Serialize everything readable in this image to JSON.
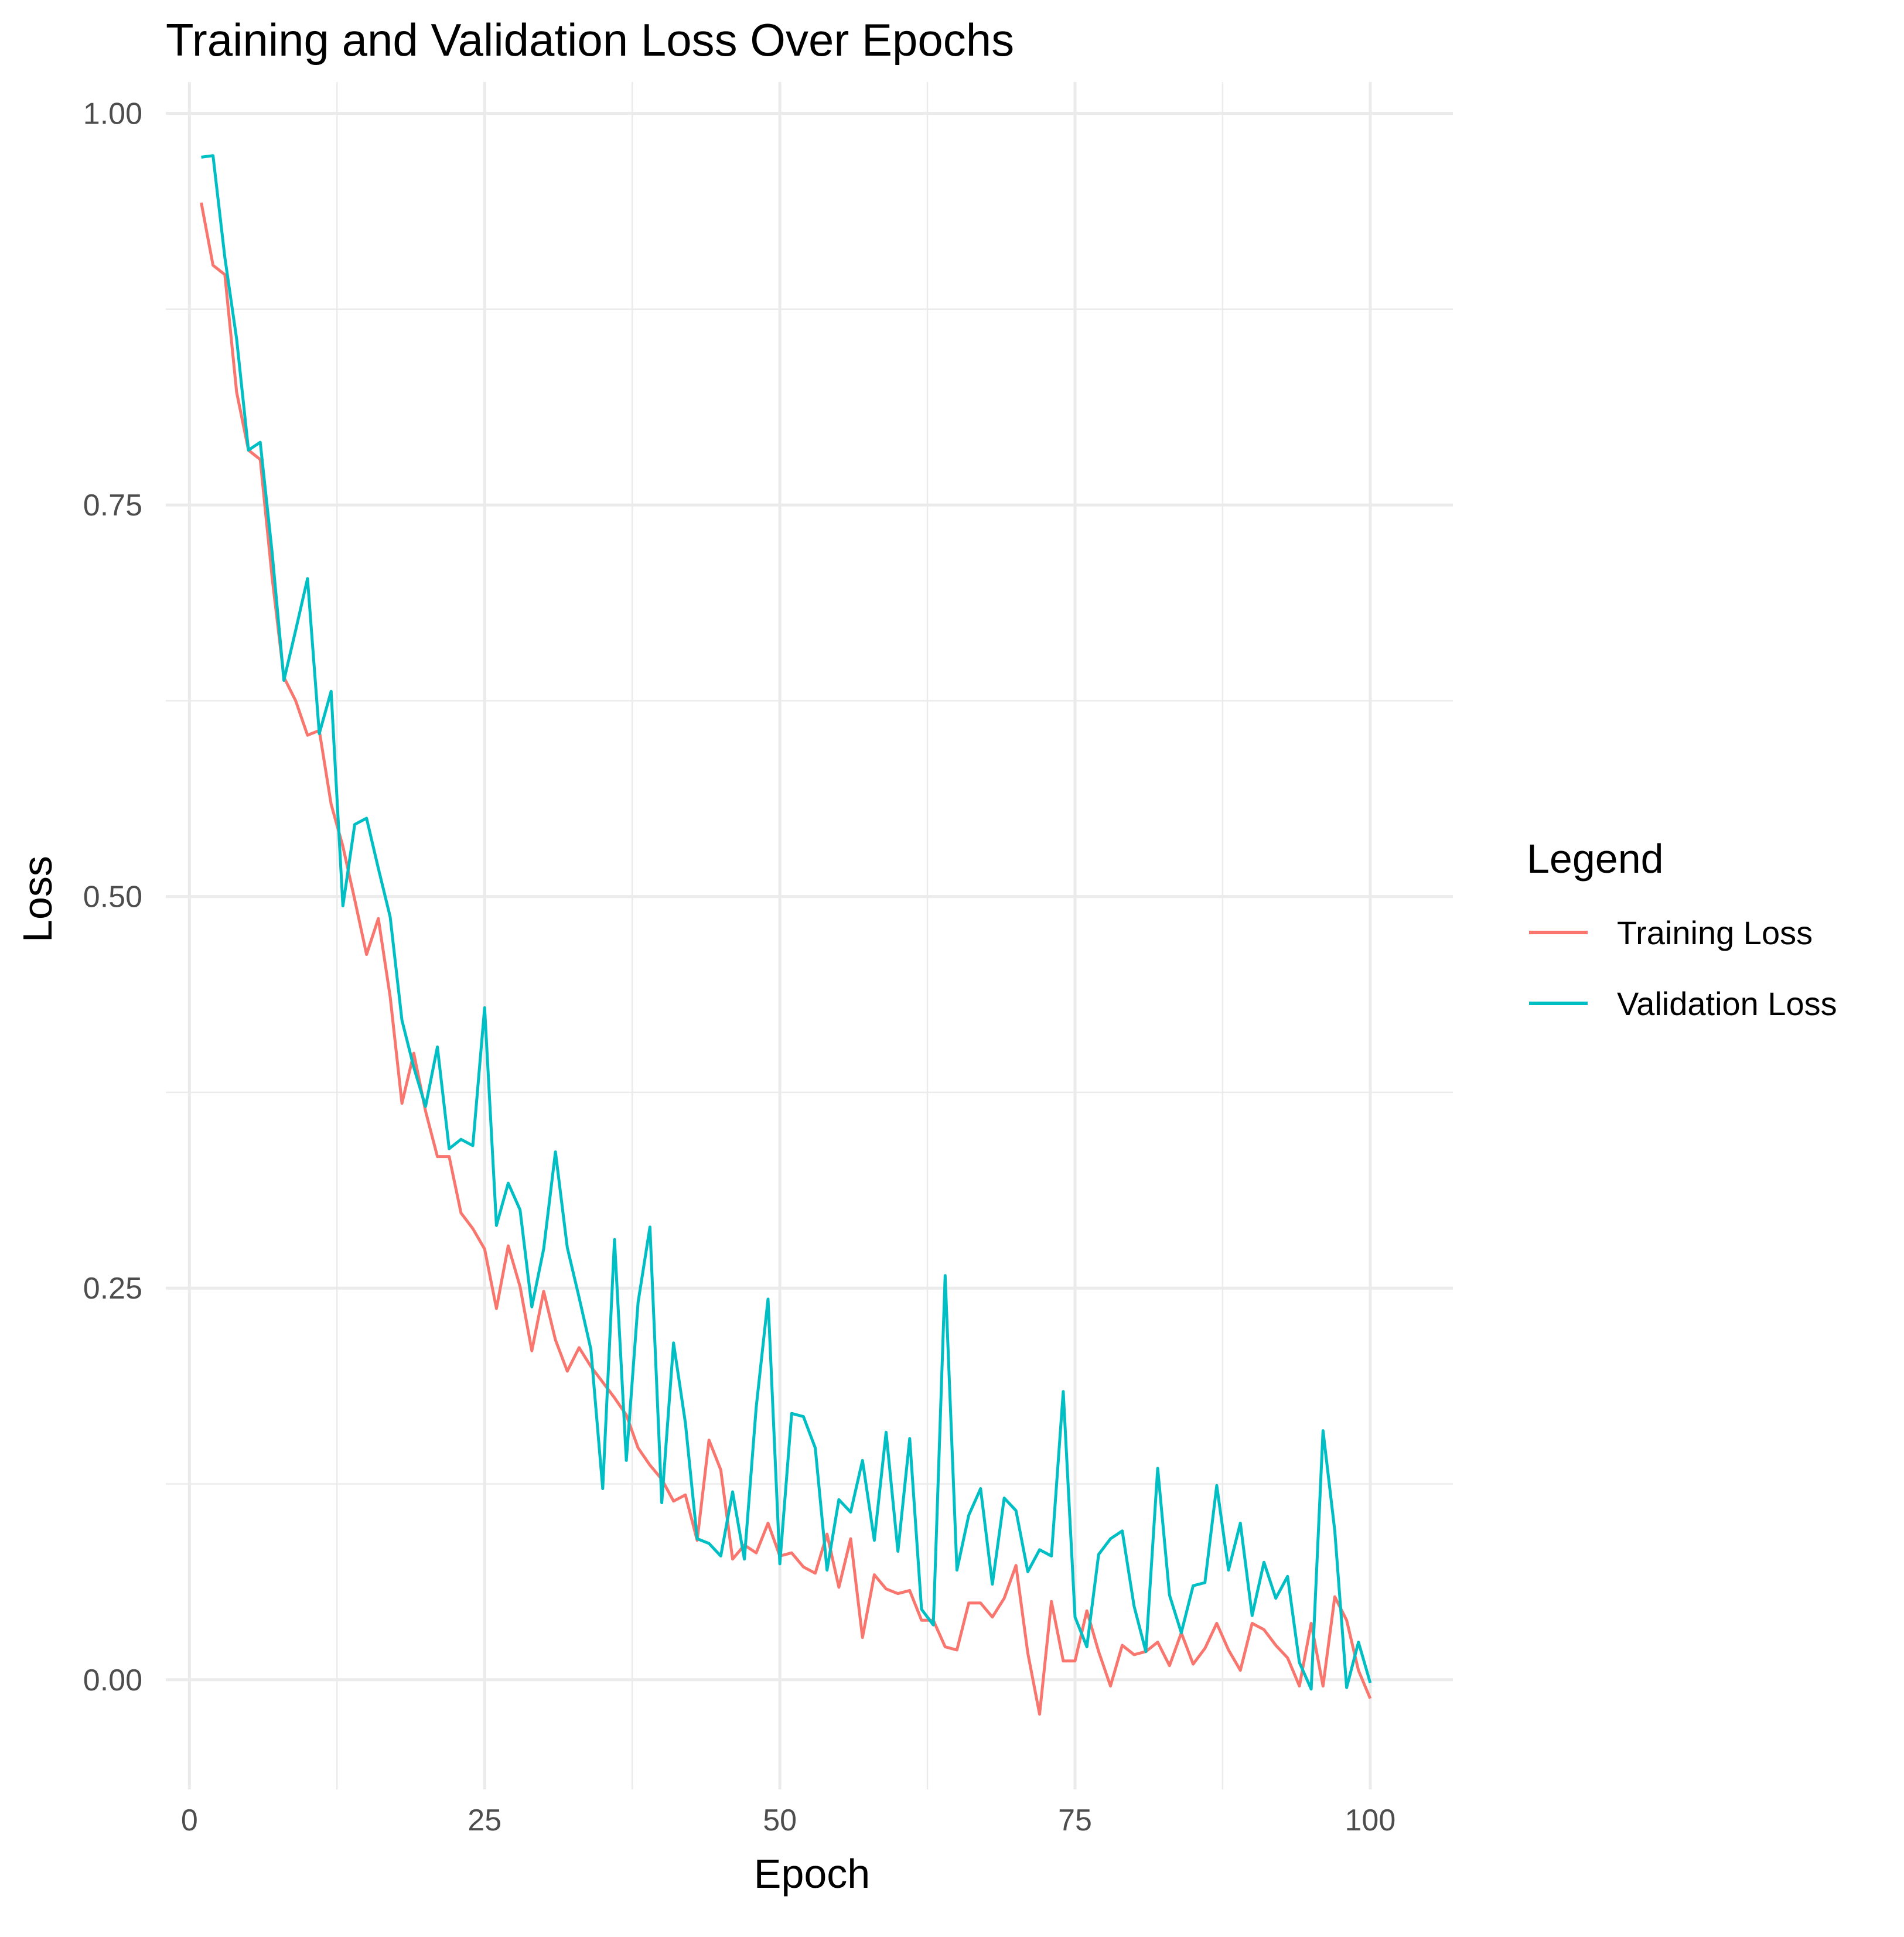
{
  "chart_data": {
    "type": "line",
    "title": "Training and Validation Loss Over Epochs",
    "xlabel": "Epoch",
    "ylabel": "Loss",
    "xlim": [
      -2,
      107
    ],
    "ylim": [
      -0.07,
      1.02
    ],
    "x_ticks": [
      0,
      25,
      50,
      75,
      100
    ],
    "x_tick_labels": [
      "0",
      "25",
      "50",
      "75",
      "100"
    ],
    "y_ticks": [
      0,
      0.25,
      0.5,
      0.75,
      1.0
    ],
    "y_tick_labels": [
      "0.00",
      "0.25",
      "0.50",
      "0.75",
      "1.00"
    ],
    "grid": true,
    "legend": {
      "title": "Legend",
      "position": "right"
    },
    "x": [
      1,
      2,
      3,
      4,
      5,
      6,
      7,
      8,
      9,
      10,
      11,
      12,
      13,
      14,
      15,
      16,
      17,
      18,
      19,
      20,
      21,
      22,
      23,
      24,
      25,
      26,
      27,
      28,
      29,
      30,
      31,
      32,
      33,
      34,
      35,
      36,
      37,
      38,
      39,
      40,
      41,
      42,
      43,
      44,
      45,
      46,
      47,
      48,
      49,
      50,
      51,
      52,
      53,
      54,
      55,
      56,
      57,
      58,
      59,
      60,
      61,
      62,
      63,
      64,
      65,
      66,
      67,
      68,
      69,
      70,
      71,
      72,
      73,
      74,
      75,
      76,
      77,
      78,
      79,
      80,
      81,
      82,
      83,
      84,
      85,
      86,
      87,
      88,
      89,
      90,
      91,
      92,
      93,
      94,
      95,
      96,
      97,
      98,
      99,
      100
    ],
    "series": [
      {
        "name": "Training Loss",
        "color": "#f8766d",
        "values": [
          0.943,
          0.903,
          0.897,
          0.822,
          0.785,
          0.779,
          0.704,
          0.64,
          0.625,
          0.603,
          0.606,
          0.559,
          0.532,
          0.498,
          0.463,
          0.486,
          0.436,
          0.368,
          0.4,
          0.363,
          0.334,
          0.334,
          0.298,
          0.288,
          0.275,
          0.237,
          0.277,
          0.251,
          0.21,
          0.248,
          0.217,
          0.197,
          0.212,
          0.2,
          0.19,
          0.18,
          0.169,
          0.148,
          0.137,
          0.128,
          0.114,
          0.118,
          0.089,
          0.153,
          0.134,
          0.077,
          0.086,
          0.081,
          0.1,
          0.079,
          0.081,
          0.072,
          0.068,
          0.093,
          0.059,
          0.09,
          0.027,
          0.067,
          0.058,
          0.055,
          0.057,
          0.038,
          0.038,
          0.021,
          0.019,
          0.049,
          0.049,
          0.04,
          0.052,
          0.073,
          0.017,
          -0.022,
          0.05,
          0.012,
          0.012,
          0.044,
          0.018,
          -0.004,
          0.022,
          0.016,
          0.018,
          0.024,
          0.009,
          0.03,
          0.01,
          0.02,
          0.036,
          0.019,
          0.006,
          0.036,
          0.032,
          0.022,
          0.014,
          -0.004,
          0.036,
          -0.004,
          0.053,
          0.038,
          0.006,
          -0.012
        ]
      },
      {
        "name": "Validation Loss",
        "color": "#00bfc4",
        "values": [
          0.972,
          0.973,
          0.908,
          0.856,
          0.785,
          0.79,
          0.72,
          0.638,
          0.67,
          0.703,
          0.604,
          0.631,
          0.494,
          0.546,
          0.55,
          0.518,
          0.487,
          0.421,
          0.391,
          0.366,
          0.404,
          0.339,
          0.345,
          0.341,
          0.429,
          0.29,
          0.317,
          0.3,
          0.238,
          0.275,
          0.337,
          0.276,
          0.244,
          0.211,
          0.122,
          0.281,
          0.14,
          0.241,
          0.289,
          0.113,
          0.215,
          0.164,
          0.09,
          0.087,
          0.079,
          0.12,
          0.077,
          0.174,
          0.243,
          0.074,
          0.17,
          0.168,
          0.148,
          0.07,
          0.115,
          0.107,
          0.14,
          0.089,
          0.158,
          0.082,
          0.154,
          0.045,
          0.035,
          0.258,
          0.07,
          0.105,
          0.122,
          0.061,
          0.116,
          0.108,
          0.069,
          0.083,
          0.079,
          0.184,
          0.04,
          0.021,
          0.08,
          0.09,
          0.095,
          0.047,
          0.018,
          0.135,
          0.054,
          0.03,
          0.06,
          0.062,
          0.124,
          0.07,
          0.1,
          0.041,
          0.075,
          0.052,
          0.066,
          0.011,
          -0.006,
          0.159,
          0.095,
          -0.005,
          0.024,
          -0.002
        ]
      }
    ]
  }
}
